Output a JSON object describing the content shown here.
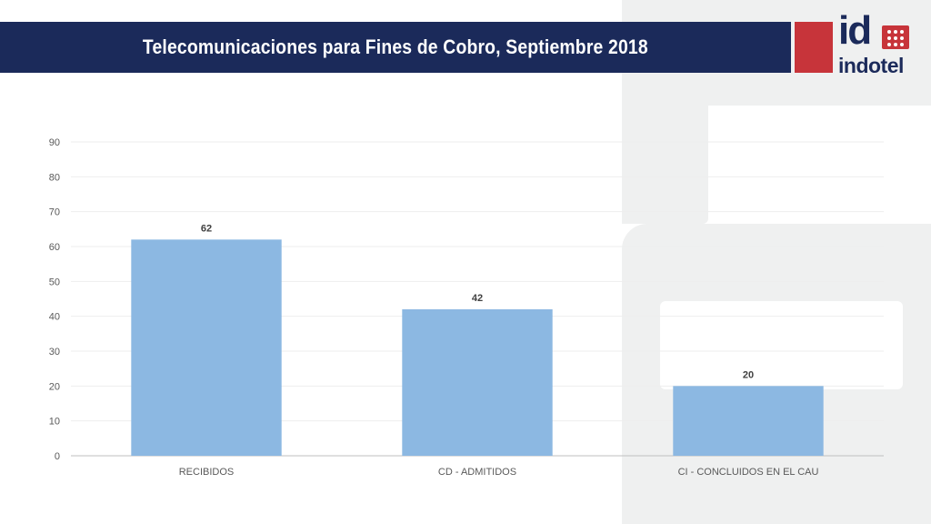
{
  "header": {
    "title": "Telecomunicaciones para Fines de Cobro, Septiembre 2018"
  },
  "logo": {
    "mark": "id",
    "name": "indotel",
    "icon": "indotel-logo-icon"
  },
  "colors": {
    "header_bg": "#1b2a5a",
    "accent_red": "#c7343a",
    "bar": "#8cb8e2",
    "background_shape": "#eff0f0"
  },
  "chart_data": {
    "type": "bar",
    "categories": [
      "RECIBIDOS",
      "CD - ADMITIDOS",
      "CI - CONCLUIDOS EN EL CAU"
    ],
    "values": [
      62,
      42,
      20
    ],
    "data_labels": [
      "62",
      "42",
      "20"
    ],
    "title": "",
    "xlabel": "",
    "ylabel": "",
    "ylim": [
      0,
      90
    ],
    "yticks": [
      "0",
      "10",
      "20",
      "30",
      "40",
      "50",
      "60",
      "70",
      "80",
      "90"
    ],
    "grid": true,
    "legend": "none"
  }
}
